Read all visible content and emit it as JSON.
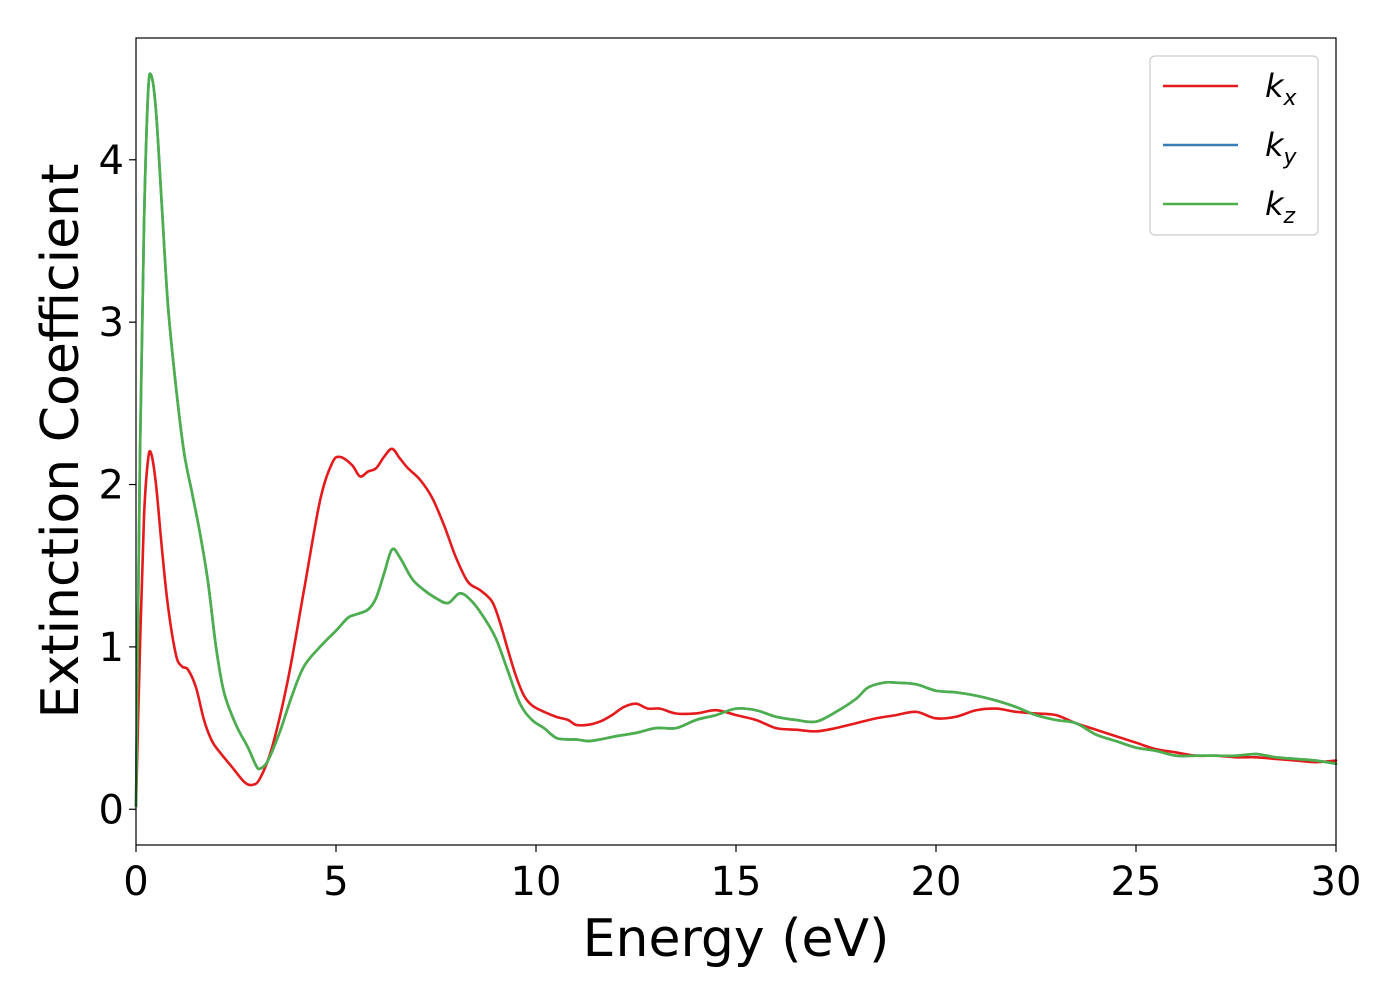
{
  "chart_data": {
    "type": "line",
    "title": "",
    "xlabel": "Energy (eV)",
    "ylabel": "Extinction Coefficient",
    "xlim": [
      0,
      30
    ],
    "ylim": [
      -0.22,
      4.75
    ],
    "xticks": [
      0,
      5,
      10,
      15,
      20,
      25,
      30
    ],
    "yticks": [
      0,
      1,
      2,
      3,
      4
    ],
    "grid": false,
    "legend_position": "top-right",
    "series": [
      {
        "name": "k",
        "subscript": "x",
        "color": "#e41a1c",
        "x": [
          0,
          0.1,
          0.2,
          0.3,
          0.38,
          0.5,
          0.65,
          0.8,
          1.0,
          1.15,
          1.3,
          1.5,
          1.7,
          1.9,
          2.1,
          2.4,
          2.7,
          2.9,
          3.1,
          3.4,
          3.8,
          4.2,
          4.6,
          4.9,
          5.1,
          5.4,
          5.6,
          5.8,
          6.0,
          6.2,
          6.4,
          6.6,
          6.8,
          7.1,
          7.4,
          7.7,
          8.0,
          8.3,
          8.6,
          8.9,
          9.1,
          9.3,
          9.5,
          9.7,
          9.9,
          10.2,
          10.5,
          10.8,
          11.0,
          11.3,
          11.6,
          11.9,
          12.2,
          12.5,
          12.8,
          13.1,
          13.5,
          14.0,
          14.5,
          15.0,
          15.5,
          16.0,
          16.5,
          17.0,
          17.5,
          18.0,
          18.5,
          19.0,
          19.5,
          20.0,
          20.5,
          21.0,
          21.5,
          22.0,
          22.5,
          23.0,
          23.5,
          24.0,
          24.5,
          25.0,
          25.5,
          26.0,
          26.5,
          27.0,
          27.5,
          28.0,
          28.5,
          29.0,
          29.5,
          30.0
        ],
        "y": [
          0.02,
          1.0,
          1.8,
          2.15,
          2.19,
          2.0,
          1.6,
          1.25,
          0.95,
          0.88,
          0.86,
          0.75,
          0.55,
          0.42,
          0.35,
          0.26,
          0.17,
          0.15,
          0.19,
          0.38,
          0.8,
          1.35,
          1.9,
          2.13,
          2.17,
          2.12,
          2.05,
          2.08,
          2.1,
          2.17,
          2.22,
          2.16,
          2.1,
          2.03,
          1.92,
          1.75,
          1.55,
          1.4,
          1.35,
          1.28,
          1.15,
          0.98,
          0.82,
          0.7,
          0.64,
          0.6,
          0.57,
          0.55,
          0.52,
          0.52,
          0.54,
          0.58,
          0.63,
          0.65,
          0.62,
          0.62,
          0.59,
          0.59,
          0.61,
          0.58,
          0.55,
          0.5,
          0.49,
          0.48,
          0.5,
          0.53,
          0.56,
          0.58,
          0.6,
          0.56,
          0.57,
          0.61,
          0.62,
          0.6,
          0.59,
          0.58,
          0.53,
          0.49,
          0.45,
          0.41,
          0.37,
          0.35,
          0.33,
          0.33,
          0.32,
          0.32,
          0.31,
          0.3,
          0.29,
          0.3
        ]
      },
      {
        "name": "k",
        "subscript": "y",
        "color": "#377eb8",
        "x": [
          0,
          0.1,
          0.2,
          0.3,
          0.38,
          0.5,
          0.65,
          0.8,
          1.0,
          1.2,
          1.4,
          1.6,
          1.8,
          2.0,
          2.2,
          2.5,
          2.8,
          3.0,
          3.1,
          3.3,
          3.6,
          3.9,
          4.2,
          4.6,
          5.0,
          5.3,
          5.5,
          5.8,
          6.0,
          6.2,
          6.4,
          6.6,
          6.9,
          7.2,
          7.5,
          7.8,
          8.1,
          8.4,
          8.7,
          9.0,
          9.3,
          9.6,
          9.9,
          10.2,
          10.5,
          10.8,
          11.0,
          11.3,
          11.6,
          12.0,
          12.5,
          13.0,
          13.5,
          14.0,
          14.5,
          15.0,
          15.5,
          16.0,
          16.5,
          17.0,
          17.5,
          18.0,
          18.3,
          18.7,
          19.0,
          19.5,
          20.0,
          20.5,
          21.0,
          21.5,
          22.0,
          22.5,
          23.0,
          23.5,
          24.0,
          24.5,
          25.0,
          25.5,
          26.0,
          26.5,
          27.0,
          27.5,
          28.0,
          28.5,
          29.0,
          29.5,
          30.0
        ],
        "y": [
          0.02,
          2.2,
          3.6,
          4.4,
          4.52,
          4.3,
          3.7,
          3.1,
          2.6,
          2.2,
          1.95,
          1.7,
          1.4,
          1.0,
          0.72,
          0.52,
          0.38,
          0.27,
          0.25,
          0.3,
          0.48,
          0.7,
          0.88,
          1.0,
          1.1,
          1.18,
          1.2,
          1.23,
          1.3,
          1.45,
          1.6,
          1.55,
          1.42,
          1.35,
          1.3,
          1.27,
          1.33,
          1.28,
          1.18,
          1.05,
          0.85,
          0.65,
          0.55,
          0.5,
          0.44,
          0.43,
          0.43,
          0.42,
          0.43,
          0.45,
          0.47,
          0.5,
          0.5,
          0.55,
          0.58,
          0.62,
          0.61,
          0.57,
          0.55,
          0.54,
          0.6,
          0.68,
          0.75,
          0.78,
          0.78,
          0.77,
          0.73,
          0.72,
          0.7,
          0.67,
          0.63,
          0.58,
          0.55,
          0.53,
          0.46,
          0.42,
          0.38,
          0.36,
          0.33,
          0.33,
          0.33,
          0.33,
          0.34,
          0.32,
          0.31,
          0.3,
          0.28
        ]
      },
      {
        "name": "k",
        "subscript": "z",
        "color": "#4daf4a",
        "x": [
          0,
          0.1,
          0.2,
          0.3,
          0.38,
          0.5,
          0.65,
          0.8,
          1.0,
          1.2,
          1.4,
          1.6,
          1.8,
          2.0,
          2.2,
          2.5,
          2.8,
          3.0,
          3.1,
          3.3,
          3.6,
          3.9,
          4.2,
          4.6,
          5.0,
          5.3,
          5.5,
          5.8,
          6.0,
          6.2,
          6.4,
          6.6,
          6.9,
          7.2,
          7.5,
          7.8,
          8.1,
          8.4,
          8.7,
          9.0,
          9.3,
          9.6,
          9.9,
          10.2,
          10.5,
          10.8,
          11.0,
          11.3,
          11.6,
          12.0,
          12.5,
          13.0,
          13.5,
          14.0,
          14.5,
          15.0,
          15.5,
          16.0,
          16.5,
          17.0,
          17.5,
          18.0,
          18.3,
          18.7,
          19.0,
          19.5,
          20.0,
          20.5,
          21.0,
          21.5,
          22.0,
          22.5,
          23.0,
          23.5,
          24.0,
          24.5,
          25.0,
          25.5,
          26.0,
          26.5,
          27.0,
          27.5,
          28.0,
          28.5,
          29.0,
          29.5,
          30.0
        ],
        "y": [
          0.02,
          2.2,
          3.6,
          4.4,
          4.52,
          4.3,
          3.7,
          3.1,
          2.6,
          2.2,
          1.95,
          1.7,
          1.4,
          1.0,
          0.72,
          0.52,
          0.38,
          0.27,
          0.25,
          0.3,
          0.48,
          0.7,
          0.88,
          1.0,
          1.1,
          1.18,
          1.2,
          1.23,
          1.3,
          1.45,
          1.6,
          1.55,
          1.42,
          1.35,
          1.3,
          1.27,
          1.33,
          1.28,
          1.18,
          1.05,
          0.85,
          0.65,
          0.55,
          0.5,
          0.44,
          0.43,
          0.43,
          0.42,
          0.43,
          0.45,
          0.47,
          0.5,
          0.5,
          0.55,
          0.58,
          0.62,
          0.61,
          0.57,
          0.55,
          0.54,
          0.6,
          0.68,
          0.75,
          0.78,
          0.78,
          0.77,
          0.73,
          0.72,
          0.7,
          0.67,
          0.63,
          0.58,
          0.55,
          0.53,
          0.46,
          0.42,
          0.38,
          0.36,
          0.33,
          0.33,
          0.33,
          0.33,
          0.34,
          0.32,
          0.31,
          0.3,
          0.28
        ]
      }
    ]
  }
}
